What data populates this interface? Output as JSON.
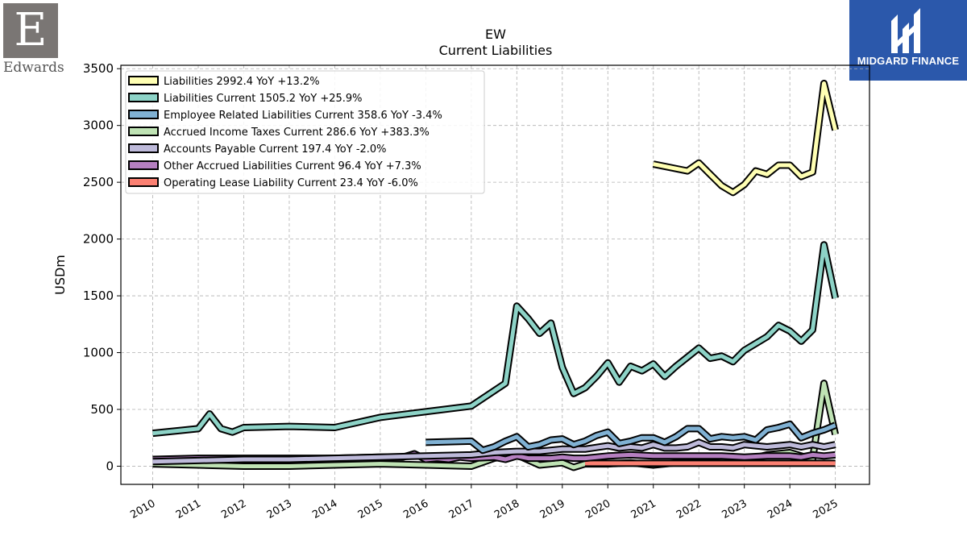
{
  "logos": {
    "company": {
      "letter": "E",
      "word": "Edwards"
    },
    "brand": {
      "name": "MIDGARD FINANCE",
      "color": "#2b58ab"
    }
  },
  "chart_data": {
    "type": "line",
    "title": "EW",
    "subtitle": "Current  Liabilities",
    "ylabel": "USDm",
    "xlabel": "",
    "ylim": [
      -160,
      3530
    ],
    "xlim": [
      2009.3,
      2025.75
    ],
    "yticks": [
      0,
      500,
      1000,
      1500,
      2000,
      2500,
      3000,
      3500
    ],
    "xticks": [
      "2010",
      "2011",
      "2012",
      "2013",
      "2014",
      "2015",
      "2016",
      "2017",
      "2018",
      "2019",
      "2020",
      "2021",
      "2022",
      "2023",
      "2024",
      "2025"
    ],
    "grid": true,
    "legend_position": "top-left",
    "series": [
      {
        "name": "Liabilities  2992.4 YoY +13.2%",
        "color": "#ffffb3",
        "points": [
          [
            2021.0,
            2660
          ],
          [
            2021.75,
            2600
          ],
          [
            2022.0,
            2670
          ],
          [
            2022.25,
            2570
          ],
          [
            2022.5,
            2470
          ],
          [
            2022.75,
            2410
          ],
          [
            2023.0,
            2480
          ],
          [
            2023.25,
            2600
          ],
          [
            2023.5,
            2570
          ],
          [
            2023.75,
            2650
          ],
          [
            2024.0,
            2650
          ],
          [
            2024.25,
            2550
          ],
          [
            2024.5,
            2590
          ],
          [
            2024.75,
            3370
          ],
          [
            2025.0,
            2960
          ]
        ]
      },
      {
        "name": "Liabilities Current  1505.2 YoY +25.9%",
        "color": "#8dd3c7",
        "points": [
          [
            2010.0,
            290
          ],
          [
            2011.0,
            330
          ],
          [
            2011.25,
            460
          ],
          [
            2011.5,
            330
          ],
          [
            2011.75,
            300
          ],
          [
            2012.0,
            340
          ],
          [
            2013.0,
            350
          ],
          [
            2014.0,
            340
          ],
          [
            2015.0,
            430
          ],
          [
            2016.0,
            480
          ],
          [
            2017.0,
            530
          ],
          [
            2017.75,
            730
          ],
          [
            2018.0,
            1410
          ],
          [
            2018.25,
            1300
          ],
          [
            2018.5,
            1170
          ],
          [
            2018.75,
            1260
          ],
          [
            2019.0,
            870
          ],
          [
            2019.25,
            640
          ],
          [
            2019.5,
            690
          ],
          [
            2019.75,
            790
          ],
          [
            2020.0,
            910
          ],
          [
            2020.25,
            740
          ],
          [
            2020.5,
            880
          ],
          [
            2020.75,
            840
          ],
          [
            2021.0,
            900
          ],
          [
            2021.25,
            790
          ],
          [
            2021.5,
            880
          ],
          [
            2021.75,
            960
          ],
          [
            2022.0,
            1040
          ],
          [
            2022.25,
            950
          ],
          [
            2022.5,
            970
          ],
          [
            2022.75,
            920
          ],
          [
            2023.0,
            1020
          ],
          [
            2023.25,
            1080
          ],
          [
            2023.5,
            1140
          ],
          [
            2023.75,
            1240
          ],
          [
            2024.0,
            1190
          ],
          [
            2024.25,
            1100
          ],
          [
            2024.5,
            1200
          ],
          [
            2024.75,
            1950
          ],
          [
            2025.0,
            1480
          ]
        ]
      },
      {
        "name": "Employee Related Liabilities Current  358.6 YoY -3.4%",
        "color": "#80b1d3",
        "points": [
          [
            2016.0,
            210
          ],
          [
            2017.0,
            220
          ],
          [
            2017.25,
            140
          ],
          [
            2017.5,
            170
          ],
          [
            2017.75,
            220
          ],
          [
            2018.0,
            260
          ],
          [
            2018.25,
            170
          ],
          [
            2018.5,
            190
          ],
          [
            2018.75,
            230
          ],
          [
            2019.0,
            240
          ],
          [
            2019.25,
            190
          ],
          [
            2019.5,
            220
          ],
          [
            2019.75,
            270
          ],
          [
            2020.0,
            300
          ],
          [
            2020.25,
            200
          ],
          [
            2020.5,
            220
          ],
          [
            2020.75,
            250
          ],
          [
            2021.0,
            250
          ],
          [
            2021.25,
            210
          ],
          [
            2021.5,
            260
          ],
          [
            2021.75,
            330
          ],
          [
            2022.0,
            330
          ],
          [
            2022.25,
            240
          ],
          [
            2022.5,
            260
          ],
          [
            2022.75,
            250
          ],
          [
            2023.0,
            260
          ],
          [
            2023.25,
            230
          ],
          [
            2023.5,
            320
          ],
          [
            2023.75,
            340
          ],
          [
            2024.0,
            370
          ],
          [
            2024.25,
            250
          ],
          [
            2024.5,
            290
          ],
          [
            2024.75,
            320
          ],
          [
            2025.0,
            360
          ]
        ]
      },
      {
        "name": "Accrued Income Taxes Current  286.6 YoY +383.3%",
        "color": "#bfe3b4",
        "points": [
          [
            2010.0,
            20
          ],
          [
            2011.0,
            10
          ],
          [
            2012.0,
            0
          ],
          [
            2013.0,
            0
          ],
          [
            2014.0,
            10
          ],
          [
            2015.0,
            20
          ],
          [
            2016.0,
            10
          ],
          [
            2017.0,
            0
          ],
          [
            2017.5,
            70
          ],
          [
            2018.0,
            100
          ],
          [
            2018.5,
            10
          ],
          [
            2019.0,
            30
          ],
          [
            2019.25,
            -10
          ],
          [
            2019.5,
            20
          ],
          [
            2020.0,
            20
          ],
          [
            2020.5,
            30
          ],
          [
            2021.0,
            10
          ],
          [
            2021.5,
            30
          ],
          [
            2022.0,
            30
          ],
          [
            2022.5,
            40
          ],
          [
            2023.0,
            50
          ],
          [
            2023.5,
            100
          ],
          [
            2024.0,
            120
          ],
          [
            2024.5,
            60
          ],
          [
            2024.75,
            730
          ],
          [
            2025.0,
            280
          ]
        ]
      },
      {
        "name": "Accounts Payable Current  197.4 YoY -2.0%",
        "color": "#bebada",
        "points": [
          [
            2010.0,
            40
          ],
          [
            2011.0,
            50
          ],
          [
            2012.0,
            60
          ],
          [
            2013.0,
            60
          ],
          [
            2014.0,
            70
          ],
          [
            2015.0,
            80
          ],
          [
            2016.0,
            90
          ],
          [
            2017.0,
            100
          ],
          [
            2017.5,
            120
          ],
          [
            2018.0,
            130
          ],
          [
            2018.5,
            130
          ],
          [
            2019.0,
            150
          ],
          [
            2019.5,
            150
          ],
          [
            2020.0,
            180
          ],
          [
            2020.25,
            160
          ],
          [
            2020.5,
            170
          ],
          [
            2020.75,
            160
          ],
          [
            2021.0,
            190
          ],
          [
            2021.25,
            160
          ],
          [
            2021.5,
            160
          ],
          [
            2021.75,
            170
          ],
          [
            2022.0,
            210
          ],
          [
            2022.25,
            170
          ],
          [
            2022.5,
            170
          ],
          [
            2022.75,
            160
          ],
          [
            2023.0,
            190
          ],
          [
            2023.25,
            180
          ],
          [
            2023.5,
            170
          ],
          [
            2023.75,
            180
          ],
          [
            2024.0,
            190
          ],
          [
            2024.25,
            170
          ],
          [
            2024.5,
            190
          ],
          [
            2024.75,
            170
          ],
          [
            2025.0,
            190
          ]
        ]
      },
      {
        "name": "Other Accrued Liabilities Current  96.4 YoY +7.3%",
        "color": "#b57fc0",
        "points": [
          [
            2010.0,
            60
          ],
          [
            2011.0,
            70
          ],
          [
            2012.0,
            70
          ],
          [
            2013.0,
            70
          ],
          [
            2014.0,
            70
          ],
          [
            2015.0,
            80
          ],
          [
            2015.5,
            80
          ],
          [
            2015.75,
            110
          ],
          [
            2016.0,
            60
          ],
          [
            2016.25,
            70
          ],
          [
            2016.5,
            60
          ],
          [
            2016.75,
            80
          ],
          [
            2017.0,
            70
          ],
          [
            2017.5,
            80
          ],
          [
            2017.75,
            60
          ],
          [
            2018.0,
            90
          ],
          [
            2018.25,
            70
          ],
          [
            2018.5,
            70
          ],
          [
            2018.75,
            70
          ],
          [
            2019.0,
            80
          ],
          [
            2019.25,
            70
          ],
          [
            2019.5,
            70
          ],
          [
            2019.75,
            80
          ],
          [
            2020.0,
            90
          ],
          [
            2020.5,
            100
          ],
          [
            2021.0,
            90
          ],
          [
            2021.5,
            90
          ],
          [
            2022.0,
            90
          ],
          [
            2022.5,
            90
          ],
          [
            2023.0,
            80
          ],
          [
            2023.5,
            90
          ],
          [
            2024.0,
            90
          ],
          [
            2024.25,
            80
          ],
          [
            2024.5,
            100
          ],
          [
            2024.75,
            90
          ],
          [
            2025.0,
            100
          ]
        ]
      },
      {
        "name": "Operating Lease Liability Current  23.4 YoY -6.0%",
        "color": "#fb8072",
        "points": [
          [
            2019.5,
            25
          ],
          [
            2020.0,
            25
          ],
          [
            2021.0,
            25
          ],
          [
            2022.0,
            25
          ],
          [
            2023.0,
            25
          ],
          [
            2024.0,
            25
          ],
          [
            2025.0,
            25
          ]
        ]
      }
    ]
  }
}
